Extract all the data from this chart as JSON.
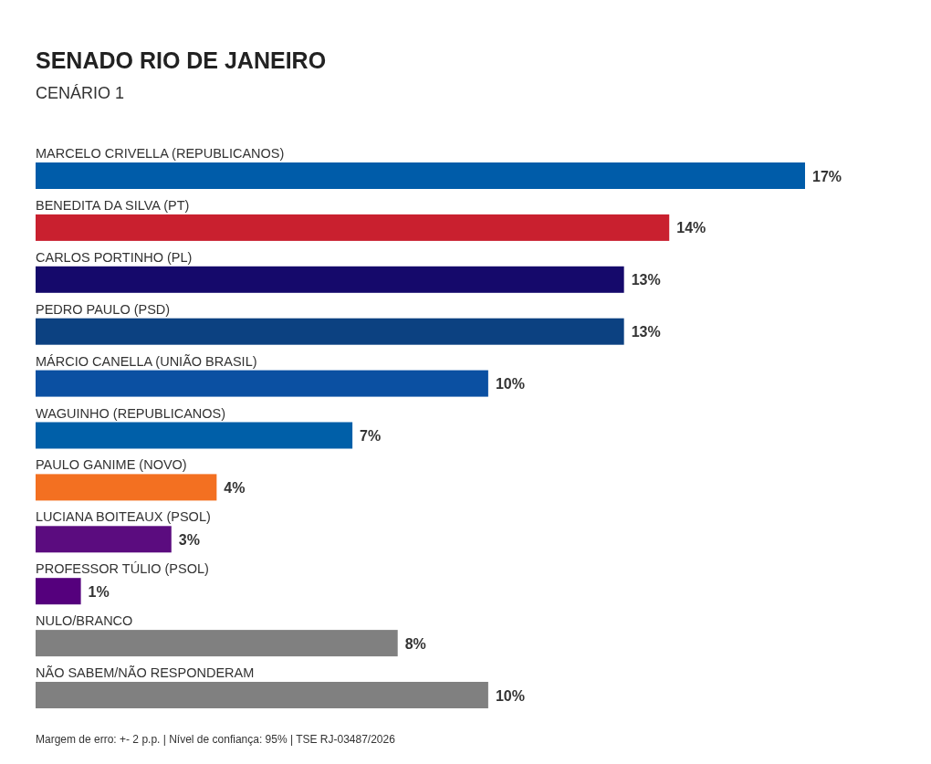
{
  "chart_data": {
    "type": "bar",
    "orientation": "horizontal",
    "title": "SENADO RIO DE JANEIRO",
    "subtitle": "CENÁRIO 1",
    "categories": [
      "MARCELO CRIVELLA (REPUBLICANOS)",
      "BENEDITA DA SILVA (PT)",
      "CARLOS PORTINHO (PL)",
      "PEDRO PAULO (PSD)",
      "MÁRCIO CANELLA (UNIÃO BRASIL)",
      "WAGUINHO (REPUBLICANOS)",
      "PAULO GANIME (NOVO)",
      "LUCIANA BOITEAUX (PSOL)",
      "PROFESSOR TÚLIO (PSOL)",
      "NULO/BRANCO",
      "NÃO SABEM/NÃO RESPONDERAM"
    ],
    "values": [
      17,
      14,
      13,
      13,
      10,
      7,
      4,
      3,
      1,
      8,
      10
    ],
    "value_labels": [
      "17%",
      "14%",
      "13%",
      "13%",
      "10%",
      "7%",
      "4%",
      "3%",
      "1%",
      "8%",
      "10%"
    ],
    "colors": [
      "#005ca9",
      "#c9202f",
      "#15096b",
      "#0c4181",
      "#0b50a2",
      "#005fa8",
      "#f37021",
      "#5b0c7f",
      "#55007d",
      "#808080",
      "#808080"
    ],
    "annotations": [
      "Margem de erro: +- 2 p.p. | Nível de confiança: 95% | TSE RJ-03487/2026"
    ]
  }
}
